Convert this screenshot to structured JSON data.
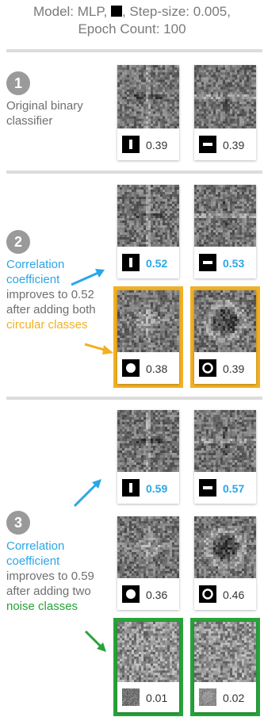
{
  "header": {
    "line1_a": "Model: MLP,",
    "line1_b": ", Step-size: 0.005,",
    "line2": "Epoch Count: 100"
  },
  "steps": [
    {
      "number": "1",
      "text": "Original binary classifier"
    },
    {
      "number": "2",
      "parts": [
        "Correlation",
        "coefficient",
        "improves to 0.52",
        "after adding both",
        "circular classes"
      ]
    },
    {
      "number": "3",
      "parts": [
        "Correlation",
        "coefficient",
        "improves to 0.59",
        "after adding two",
        "noise classes"
      ]
    }
  ],
  "cards": {
    "s1_vertical": "0.39",
    "s1_horizontal": "0.39",
    "s2_vertical": "0.52",
    "s2_horizontal": "0.53",
    "s2_filled_circle": "0.38",
    "s2_ring": "0.39",
    "s3_vertical": "0.59",
    "s3_horizontal": "0.57",
    "s3_filled_circle": "0.36",
    "s3_ring": "0.46",
    "s3_noise_a": "0.01",
    "s3_noise_b": "0.02"
  },
  "colors": {
    "blue": "#2aa7e6",
    "gold": "#f2b022",
    "green": "#27a33a",
    "divider": "#dcdcdc",
    "badge": "#9a9a9a"
  },
  "icons": [
    "vertical-bar-icon",
    "horizontal-bar-icon",
    "filled-circle-icon",
    "ring-icon",
    "noise-icon",
    "arrow-icon"
  ]
}
